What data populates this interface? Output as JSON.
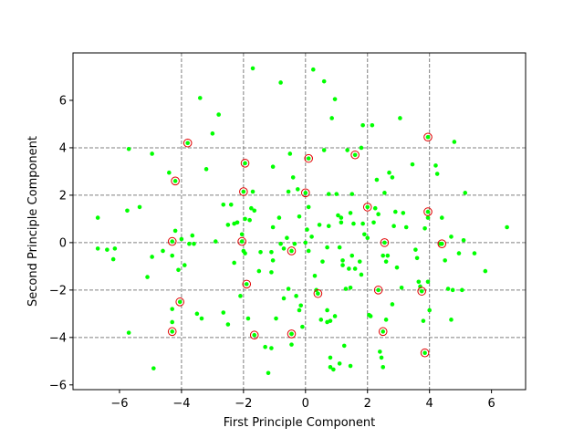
{
  "chart_data": {
    "type": "scatter",
    "title": "",
    "xlabel": "First Principle Component",
    "ylabel": "Second Principle Component",
    "xlim": [
      -7.5,
      7.1
    ],
    "ylim": [
      -6.2,
      8.0
    ],
    "x_ticks": [
      -6,
      -4,
      -2,
      0,
      2,
      4,
      6
    ],
    "y_ticks": [
      -6,
      -4,
      -2,
      0,
      2,
      4,
      6
    ],
    "x_tick_labels": [
      "−6",
      "−4",
      "−2",
      "0",
      "2",
      "4",
      "6"
    ],
    "y_tick_labels": [
      "−6",
      "−4",
      "−2",
      "0",
      "2",
      "4",
      "6"
    ],
    "grid": {
      "on": true,
      "style": "dashed",
      "color": "#808080",
      "x_lines": [
        -4,
        -2,
        0,
        2,
        4
      ],
      "y_lines": [
        -4,
        -2,
        0,
        2,
        4
      ]
    },
    "point_color": "#00ff00",
    "highlight_edge_color": "#e00000",
    "series": [
      {
        "marker": "dot",
        "points": [
          [
            -6.7,
            1.05
          ],
          [
            -6.7,
            -0.25
          ],
          [
            -6.4,
            -0.3
          ],
          [
            -6.2,
            -0.7
          ],
          [
            -6.15,
            -0.25
          ],
          [
            -5.7,
            3.95
          ],
          [
            -5.75,
            1.35
          ],
          [
            -5.7,
            -3.8
          ],
          [
            -5.35,
            1.5
          ],
          [
            -5.1,
            -1.45
          ],
          [
            -4.95,
            3.75
          ],
          [
            -4.95,
            -0.6
          ],
          [
            -4.9,
            -5.3
          ],
          [
            -4.6,
            -0.35
          ],
          [
            -4.4,
            2.95
          ],
          [
            -4.3,
            -0.55
          ],
          [
            -4.2,
            0.5
          ],
          [
            -4.1,
            -1.15
          ],
          [
            -4.3,
            -2.8
          ],
          [
            -4.3,
            -3.35
          ],
          [
            -4.0,
            0.15
          ],
          [
            -3.9,
            -0.95
          ],
          [
            -3.75,
            -0.05
          ],
          [
            -3.65,
            0.3
          ],
          [
            -3.6,
            -0.05
          ],
          [
            -3.5,
            -3.0
          ],
          [
            -3.4,
            6.1
          ],
          [
            -3.35,
            -3.2
          ],
          [
            -3.2,
            3.1
          ],
          [
            -3.0,
            4.6
          ],
          [
            -2.9,
            0.05
          ],
          [
            -2.8,
            5.4
          ],
          [
            -2.65,
            -2.95
          ],
          [
            -2.65,
            1.6
          ],
          [
            -2.5,
            0.75
          ],
          [
            -2.5,
            -3.45
          ],
          [
            -2.4,
            1.6
          ],
          [
            -2.3,
            0.8
          ],
          [
            -2.3,
            -0.85
          ],
          [
            -2.2,
            0.85
          ],
          [
            -2.1,
            -2.25
          ],
          [
            -2.05,
            0.35
          ],
          [
            -2.0,
            -0.35
          ],
          [
            -1.95,
            -0.45
          ],
          [
            -1.95,
            1.0
          ],
          [
            -1.85,
            -3.2
          ],
          [
            -1.8,
            0.95
          ],
          [
            -1.75,
            1.45
          ],
          [
            -1.7,
            2.15
          ],
          [
            -1.7,
            7.35
          ],
          [
            -1.65,
            1.35
          ],
          [
            -1.5,
            -1.2
          ],
          [
            -1.45,
            -0.4
          ],
          [
            -1.3,
            -4.4
          ],
          [
            -1.2,
            -5.5
          ],
          [
            -1.1,
            -0.4
          ],
          [
            -1.1,
            -1.25
          ],
          [
            -1.1,
            -4.45
          ],
          [
            -1.05,
            0.65
          ],
          [
            -1.05,
            -0.75
          ],
          [
            -1.05,
            3.2
          ],
          [
            -0.95,
            -3.2
          ],
          [
            -0.85,
            1.05
          ],
          [
            -0.8,
            -0.05
          ],
          [
            -0.8,
            6.75
          ],
          [
            -0.7,
            -0.25
          ],
          [
            -0.7,
            -2.35
          ],
          [
            -0.6,
            0.2
          ],
          [
            -0.55,
            -1.95
          ],
          [
            -0.55,
            2.15
          ],
          [
            -0.5,
            3.75
          ],
          [
            -0.45,
            -4.3
          ],
          [
            -0.45,
            -3.85
          ],
          [
            -0.4,
            2.75
          ],
          [
            -0.35,
            -0.05
          ],
          [
            -0.3,
            -2.25
          ],
          [
            -0.25,
            2.25
          ],
          [
            -0.2,
            1.1
          ],
          [
            -0.2,
            -2.85
          ],
          [
            -0.15,
            -2.65
          ],
          [
            -0.1,
            -3.55
          ],
          [
            0.0,
            0.0
          ],
          [
            0.05,
            0.55
          ],
          [
            0.1,
            1.5
          ],
          [
            0.1,
            -0.35
          ],
          [
            0.2,
            0.25
          ],
          [
            0.25,
            7.3
          ],
          [
            0.3,
            -1.4
          ],
          [
            0.35,
            -2.0
          ],
          [
            0.45,
            0.75
          ],
          [
            0.5,
            -3.25
          ],
          [
            0.55,
            -0.8
          ],
          [
            0.6,
            3.9
          ],
          [
            0.6,
            6.8
          ],
          [
            0.7,
            -2.85
          ],
          [
            0.7,
            -3.35
          ],
          [
            0.7,
            -0.2
          ],
          [
            0.75,
            0.7
          ],
          [
            0.75,
            2.05
          ],
          [
            0.8,
            -3.3
          ],
          [
            0.8,
            -4.85
          ],
          [
            0.8,
            -5.25
          ],
          [
            0.85,
            5.25
          ],
          [
            0.9,
            -5.35
          ],
          [
            0.95,
            -3.1
          ],
          [
            0.95,
            6.05
          ],
          [
            1.0,
            2.05
          ],
          [
            1.05,
            1.15
          ],
          [
            1.1,
            -0.2
          ],
          [
            1.1,
            -5.1
          ],
          [
            1.15,
            0.85
          ],
          [
            1.15,
            1.05
          ],
          [
            1.2,
            -0.75
          ],
          [
            1.2,
            -0.95
          ],
          [
            1.25,
            -4.35
          ],
          [
            1.3,
            -1.95
          ],
          [
            1.35,
            3.9
          ],
          [
            1.4,
            -1.1
          ],
          [
            1.45,
            1.25
          ],
          [
            1.45,
            -1.9
          ],
          [
            1.45,
            -5.2
          ],
          [
            1.5,
            2.05
          ],
          [
            1.5,
            -0.55
          ],
          [
            1.55,
            0.8
          ],
          [
            1.6,
            -1.1
          ],
          [
            1.75,
            -0.8
          ],
          [
            1.8,
            -1.35
          ],
          [
            1.8,
            4.0
          ],
          [
            1.85,
            0.8
          ],
          [
            1.85,
            4.95
          ],
          [
            1.9,
            0.35
          ],
          [
            2.0,
            0.2
          ],
          [
            2.05,
            -3.05
          ],
          [
            2.1,
            -3.1
          ],
          [
            2.15,
            4.95
          ],
          [
            2.2,
            0.85
          ],
          [
            2.25,
            1.45
          ],
          [
            2.3,
            2.65
          ],
          [
            2.35,
            1.2
          ],
          [
            2.4,
            -4.6
          ],
          [
            2.45,
            -4.85
          ],
          [
            2.5,
            -0.55
          ],
          [
            2.5,
            -5.25
          ],
          [
            2.55,
            2.1
          ],
          [
            2.6,
            -0.8
          ],
          [
            2.6,
            -3.25
          ],
          [
            2.65,
            -0.55
          ],
          [
            2.7,
            2.95
          ],
          [
            2.8,
            2.75
          ],
          [
            2.8,
            -2.6
          ],
          [
            2.85,
            0.7
          ],
          [
            2.9,
            1.3
          ],
          [
            2.95,
            -1.05
          ],
          [
            3.05,
            5.25
          ],
          [
            3.1,
            -1.9
          ],
          [
            3.15,
            1.25
          ],
          [
            3.25,
            0.65
          ],
          [
            3.45,
            3.3
          ],
          [
            3.55,
            -0.3
          ],
          [
            3.6,
            -0.65
          ],
          [
            3.65,
            -1.65
          ],
          [
            3.7,
            -1.85
          ],
          [
            3.8,
            -3.3
          ],
          [
            3.85,
            0.6
          ],
          [
            3.95,
            -1.65
          ],
          [
            3.95,
            1.05
          ],
          [
            4.0,
            -2.85
          ],
          [
            4.2,
            3.25
          ],
          [
            4.25,
            2.9
          ],
          [
            4.35,
            -0.05
          ],
          [
            4.4,
            1.05
          ],
          [
            4.5,
            -0.75
          ],
          [
            4.6,
            -1.95
          ],
          [
            4.7,
            0.25
          ],
          [
            4.7,
            -3.25
          ],
          [
            4.75,
            -2.0
          ],
          [
            4.8,
            4.25
          ],
          [
            4.95,
            -0.45
          ],
          [
            5.05,
            -2.0
          ],
          [
            5.1,
            0.1
          ],
          [
            5.15,
            2.1
          ],
          [
            5.45,
            -0.45
          ],
          [
            5.8,
            -1.2
          ],
          [
            6.5,
            0.65
          ]
        ]
      },
      {
        "marker": "circle",
        "points": [
          [
            -3.8,
            4.2
          ],
          [
            -4.2,
            2.6
          ],
          [
            -4.3,
            0.05
          ],
          [
            -4.05,
            -2.5
          ],
          [
            -4.3,
            -3.75
          ],
          [
            -1.95,
            3.35
          ],
          [
            -2.0,
            2.15
          ],
          [
            -2.05,
            0.05
          ],
          [
            -1.9,
            -1.75
          ],
          [
            -1.65,
            -3.9
          ],
          [
            0.1,
            3.55
          ],
          [
            0.0,
            2.1
          ],
          [
            -0.45,
            -0.35
          ],
          [
            -0.45,
            -3.85
          ],
          [
            0.4,
            -2.15
          ],
          [
            1.6,
            3.7
          ],
          [
            2.0,
            1.5
          ],
          [
            2.55,
            0.0
          ],
          [
            2.35,
            -2.0
          ],
          [
            2.5,
            -3.75
          ],
          [
            3.95,
            4.45
          ],
          [
            3.95,
            1.3
          ],
          [
            4.4,
            -0.05
          ],
          [
            3.75,
            -2.05
          ],
          [
            3.85,
            -4.65
          ]
        ]
      }
    ]
  }
}
